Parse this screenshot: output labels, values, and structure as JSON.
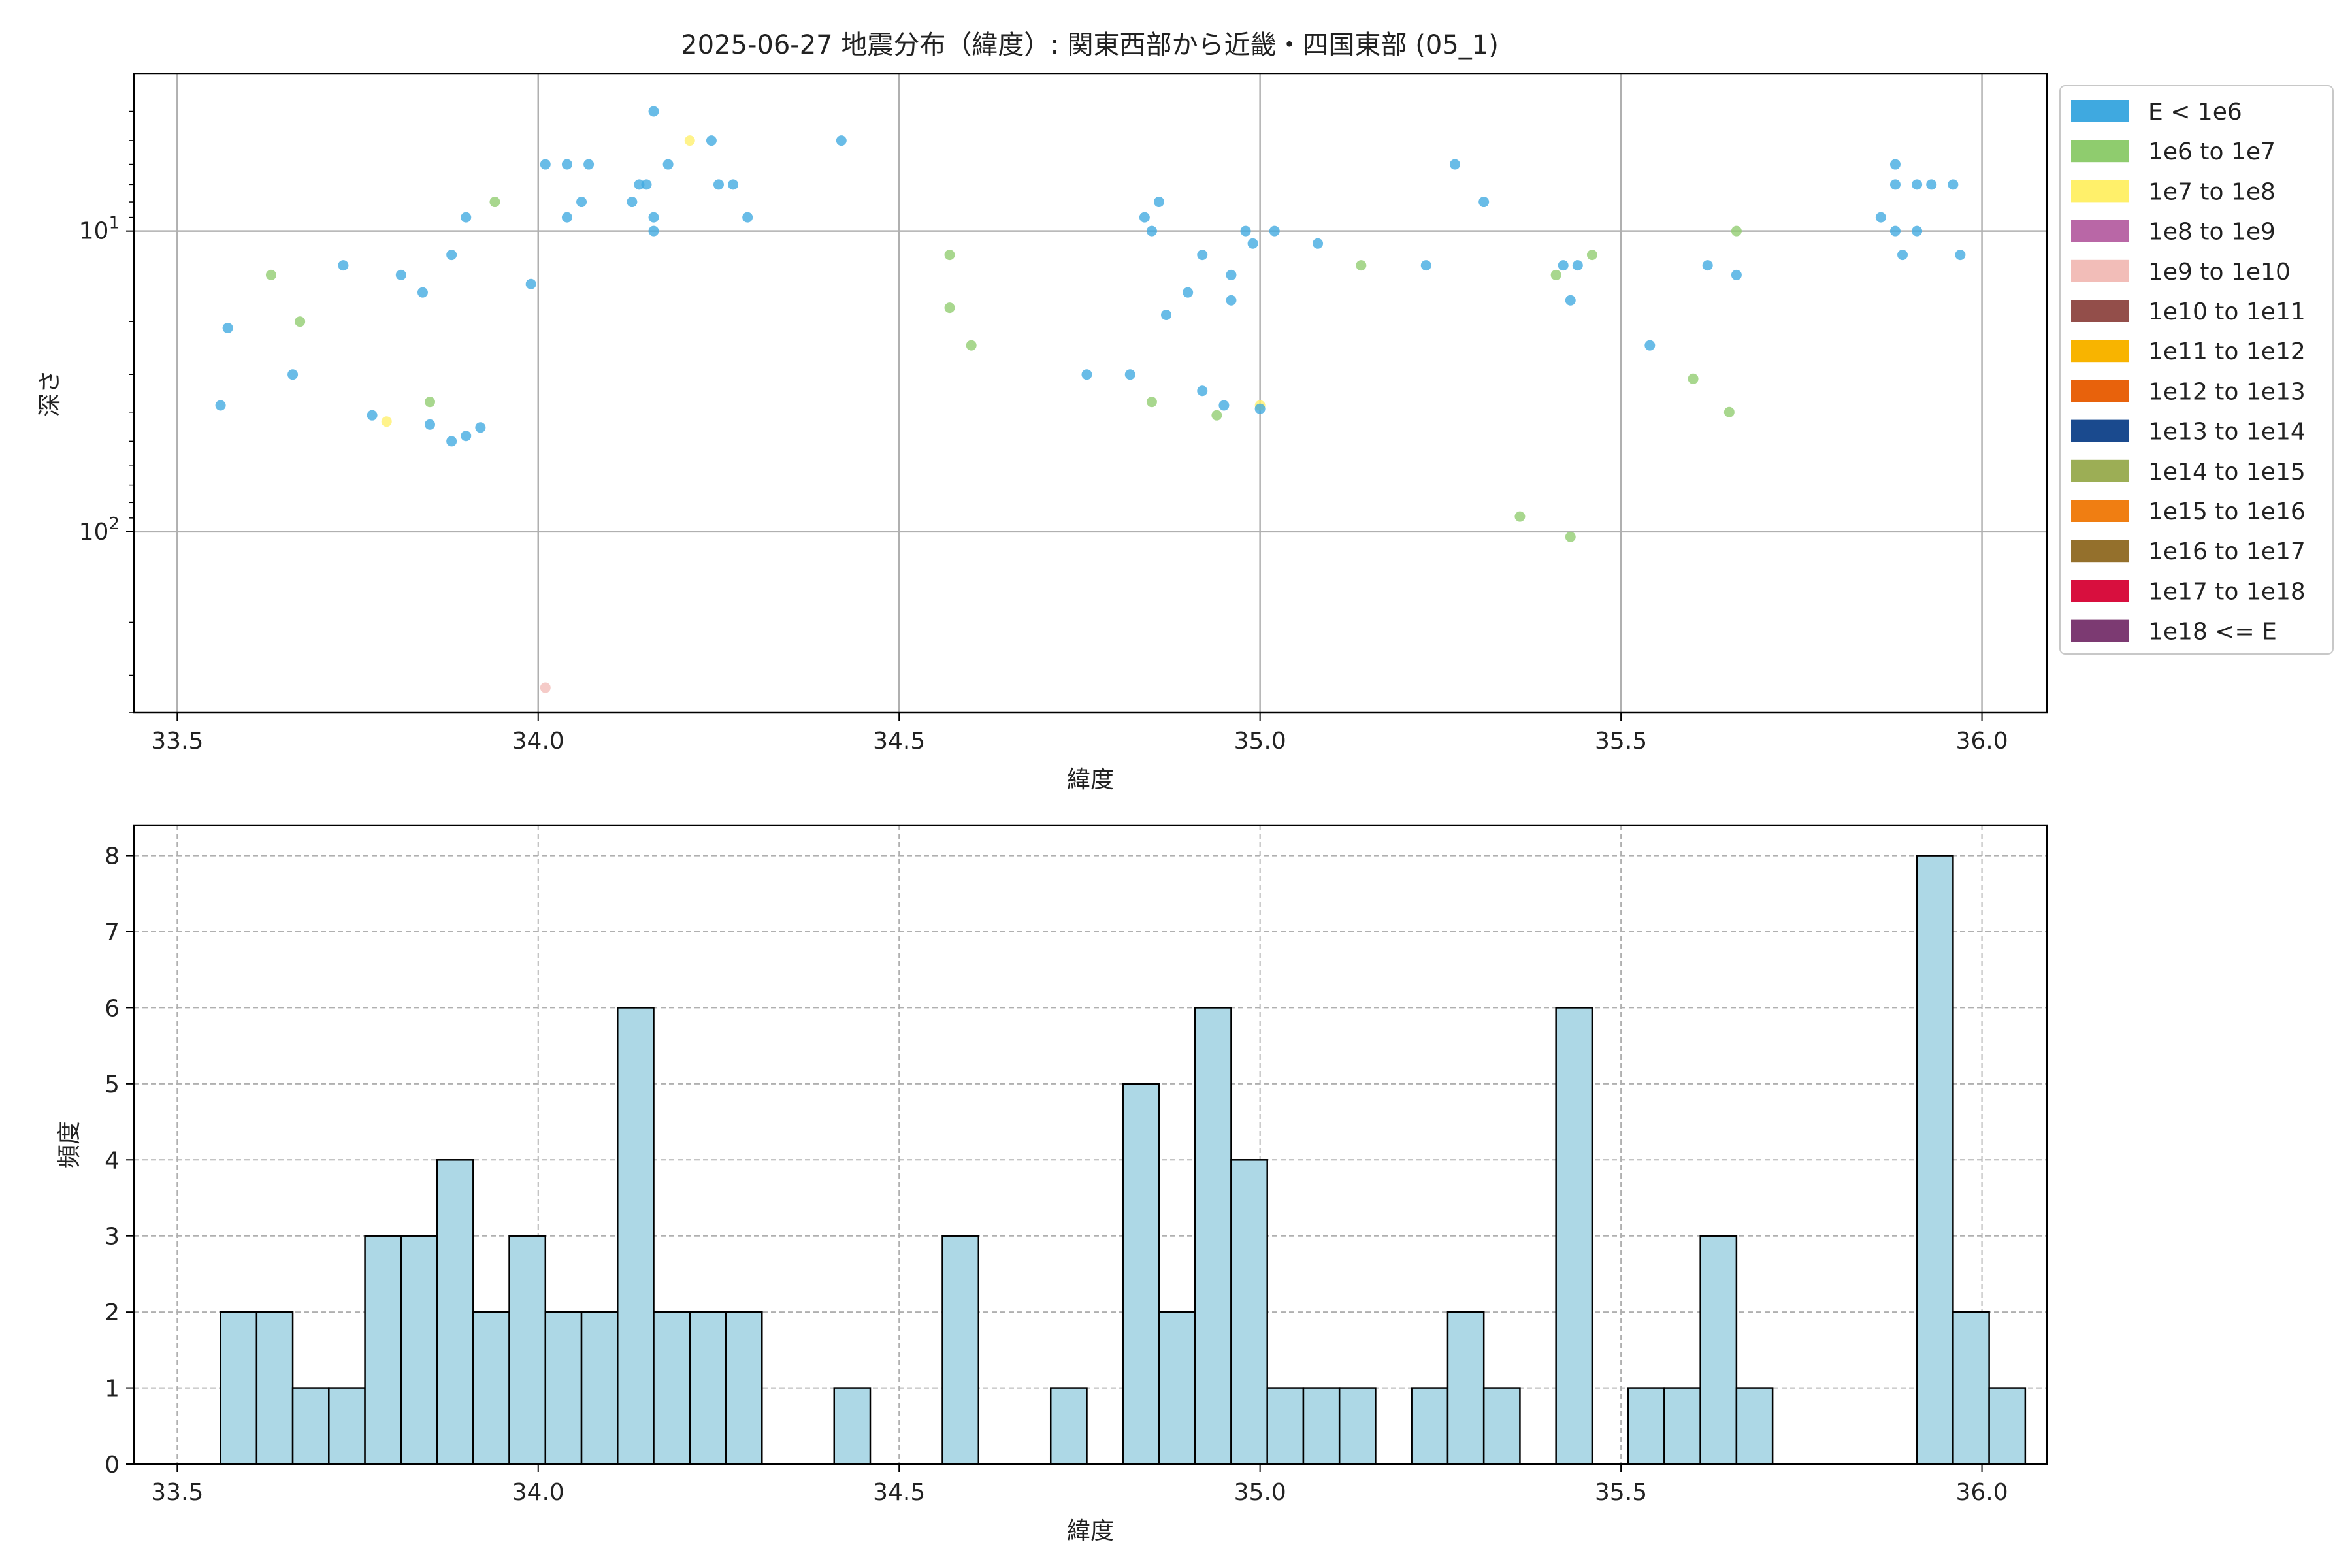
{
  "title": "2025-06-27 地震分布（緯度）: 関東西部から近畿・四国東部 (05_1)",
  "chart_data": [
    {
      "type": "scatter",
      "xlabel": "緯度",
      "ylabel": "深さ",
      "xlim": [
        33.44,
        36.09
      ],
      "ylim": [
        400,
        3
      ],
      "yscale": "log",
      "y_inverted": true,
      "grid": true,
      "legend_placement": "outside-right",
      "x_ticks": [
        "33.5",
        "34.0",
        "34.5",
        "35.0",
        "35.5",
        "36.0"
      ],
      "y_ticks": [
        {
          "value": 10,
          "base": "10",
          "exp": "1"
        },
        {
          "value": 100,
          "base": "10",
          "exp": "2"
        }
      ],
      "legend": [
        {
          "label": "E < 1e6",
          "color": "#3fa9e0"
        },
        {
          "label": "1e6 to 1e7",
          "color": "#8fcc6e"
        },
        {
          "label": "1e7 to 1e8",
          "color": "#fff06a"
        },
        {
          "label": "1e8 to 1e9",
          "color": "#b967a6"
        },
        {
          "label": "1e9 to 1e10",
          "color": "#f2bdb8"
        },
        {
          "label": "1e10 to 1e11",
          "color": "#934e4a"
        },
        {
          "label": "1e11 to 1e12",
          "color": "#f8b400"
        },
        {
          "label": "1e12 to 1e13",
          "color": "#e8620c"
        },
        {
          "label": "1e13 to 1e14",
          "color": "#1a4a8e"
        },
        {
          "label": "1e14 to 1e15",
          "color": "#9cae55"
        },
        {
          "label": "1e15 to 1e16",
          "color": "#f07e12"
        },
        {
          "label": "1e16 to 1e17",
          "color": "#94702c"
        },
        {
          "label": "1e17 to 1e18",
          "color": "#d80f3e"
        },
        {
          "label": "1e18 <= E",
          "color": "#7c3a72"
        }
      ],
      "points": [
        {
          "x": 33.56,
          "y": 38,
          "c": 0
        },
        {
          "x": 33.57,
          "y": 21,
          "c": 0
        },
        {
          "x": 33.63,
          "y": 14,
          "c": 1
        },
        {
          "x": 33.66,
          "y": 30,
          "c": 0
        },
        {
          "x": 33.67,
          "y": 20,
          "c": 1
        },
        {
          "x": 33.73,
          "y": 13,
          "c": 0
        },
        {
          "x": 33.77,
          "y": 41,
          "c": 0
        },
        {
          "x": 33.79,
          "y": 43,
          "c": 2
        },
        {
          "x": 33.81,
          "y": 14,
          "c": 0
        },
        {
          "x": 33.84,
          "y": 16,
          "c": 0
        },
        {
          "x": 33.85,
          "y": 37,
          "c": 1
        },
        {
          "x": 33.85,
          "y": 44,
          "c": 0
        },
        {
          "x": 33.88,
          "y": 12,
          "c": 0
        },
        {
          "x": 33.88,
          "y": 50,
          "c": 0
        },
        {
          "x": 33.9,
          "y": 9,
          "c": 0
        },
        {
          "x": 33.9,
          "y": 48,
          "c": 0
        },
        {
          "x": 33.92,
          "y": 45,
          "c": 0
        },
        {
          "x": 33.94,
          "y": 8,
          "c": 1
        },
        {
          "x": 33.99,
          "y": 15,
          "c": 0
        },
        {
          "x": 34.01,
          "y": 6,
          "c": 0
        },
        {
          "x": 34.01,
          "y": 330,
          "c": 4
        },
        {
          "x": 34.04,
          "y": 6,
          "c": 0
        },
        {
          "x": 34.04,
          "y": 9,
          "c": 0
        },
        {
          "x": 34.06,
          "y": 8,
          "c": 0
        },
        {
          "x": 34.07,
          "y": 6,
          "c": 0
        },
        {
          "x": 34.13,
          "y": 8,
          "c": 0
        },
        {
          "x": 34.14,
          "y": 7,
          "c": 0
        },
        {
          "x": 34.15,
          "y": 7,
          "c": 0
        },
        {
          "x": 34.16,
          "y": 9,
          "c": 0
        },
        {
          "x": 34.16,
          "y": 10,
          "c": 0
        },
        {
          "x": 34.16,
          "y": 4,
          "c": 0
        },
        {
          "x": 34.18,
          "y": 6,
          "c": 0
        },
        {
          "x": 34.21,
          "y": 5,
          "c": 2
        },
        {
          "x": 34.24,
          "y": 5,
          "c": 0
        },
        {
          "x": 34.25,
          "y": 7,
          "c": 0
        },
        {
          "x": 34.27,
          "y": 7,
          "c": 0
        },
        {
          "x": 34.29,
          "y": 9,
          "c": 0
        },
        {
          "x": 34.42,
          "y": 5,
          "c": 0
        },
        {
          "x": 34.57,
          "y": 12,
          "c": 1
        },
        {
          "x": 34.57,
          "y": 18,
          "c": 1
        },
        {
          "x": 34.6,
          "y": 24,
          "c": 1
        },
        {
          "x": 34.76,
          "y": 30,
          "c": 0
        },
        {
          "x": 34.82,
          "y": 30,
          "c": 0
        },
        {
          "x": 34.84,
          "y": 9,
          "c": 0
        },
        {
          "x": 34.85,
          "y": 37,
          "c": 1
        },
        {
          "x": 34.85,
          "y": 10,
          "c": 0
        },
        {
          "x": 34.86,
          "y": 8,
          "c": 0
        },
        {
          "x": 34.87,
          "y": 19,
          "c": 0
        },
        {
          "x": 34.9,
          "y": 16,
          "c": 0
        },
        {
          "x": 34.92,
          "y": 34,
          "c": 0
        },
        {
          "x": 34.92,
          "y": 12,
          "c": 0
        },
        {
          "x": 34.94,
          "y": 41,
          "c": 1
        },
        {
          "x": 34.95,
          "y": 38,
          "c": 0
        },
        {
          "x": 34.96,
          "y": 14,
          "c": 0
        },
        {
          "x": 34.96,
          "y": 17,
          "c": 0
        },
        {
          "x": 34.98,
          "y": 10,
          "c": 0
        },
        {
          "x": 34.99,
          "y": 11,
          "c": 0
        },
        {
          "x": 35.0,
          "y": 38,
          "c": 2
        },
        {
          "x": 35.0,
          "y": 39,
          "c": 0
        },
        {
          "x": 35.02,
          "y": 10,
          "c": 0
        },
        {
          "x": 35.08,
          "y": 11,
          "c": 0
        },
        {
          "x": 35.14,
          "y": 13,
          "c": 1
        },
        {
          "x": 35.23,
          "y": 13,
          "c": 0
        },
        {
          "x": 35.27,
          "y": 6,
          "c": 0
        },
        {
          "x": 35.31,
          "y": 8,
          "c": 0
        },
        {
          "x": 35.36,
          "y": 89,
          "c": 1
        },
        {
          "x": 35.41,
          "y": 14,
          "c": 1
        },
        {
          "x": 35.42,
          "y": 13,
          "c": 0
        },
        {
          "x": 35.43,
          "y": 17,
          "c": 0
        },
        {
          "x": 35.43,
          "y": 104,
          "c": 1
        },
        {
          "x": 35.44,
          "y": 13,
          "c": 0
        },
        {
          "x": 35.46,
          "y": 12,
          "c": 1
        },
        {
          "x": 35.54,
          "y": 24,
          "c": 0
        },
        {
          "x": 35.6,
          "y": 31,
          "c": 1
        },
        {
          "x": 35.62,
          "y": 13,
          "c": 0
        },
        {
          "x": 35.65,
          "y": 40,
          "c": 1
        },
        {
          "x": 35.66,
          "y": 14,
          "c": 0
        },
        {
          "x": 35.66,
          "y": 10,
          "c": 1
        },
        {
          "x": 35.86,
          "y": 9,
          "c": 0
        },
        {
          "x": 35.88,
          "y": 6,
          "c": 0
        },
        {
          "x": 35.88,
          "y": 7,
          "c": 0
        },
        {
          "x": 35.88,
          "y": 10,
          "c": 0
        },
        {
          "x": 35.89,
          "y": 12,
          "c": 0
        },
        {
          "x": 35.91,
          "y": 7,
          "c": 0
        },
        {
          "x": 35.91,
          "y": 10,
          "c": 0
        },
        {
          "x": 35.93,
          "y": 7,
          "c": 0
        },
        {
          "x": 35.96,
          "y": 7,
          "c": 0
        },
        {
          "x": 35.97,
          "y": 12,
          "c": 0
        }
      ]
    },
    {
      "type": "bar",
      "subtype": "histogram",
      "xlabel": "緯度",
      "ylabel": "頻度",
      "xlim": [
        33.44,
        36.09
      ],
      "ylim": [
        0,
        8.4
      ],
      "grid": true,
      "x_ticks": [
        "33.5",
        "34.0",
        "34.5",
        "35.0",
        "35.5",
        "36.0"
      ],
      "y_ticks": [
        "0",
        "1",
        "2",
        "3",
        "4",
        "5",
        "6",
        "7",
        "8"
      ],
      "bar_color": "#add8e6",
      "edge_color": "#000000",
      "bin_start": 33.56,
      "bin_width": 0.05,
      "values": [
        2,
        2,
        1,
        1,
        3,
        3,
        4,
        2,
        3,
        2,
        2,
        6,
        2,
        2,
        2,
        0,
        0,
        1,
        0,
        0,
        3,
        0,
        0,
        1,
        0,
        5,
        2,
        6,
        4,
        1,
        1,
        1,
        0,
        1,
        2,
        1,
        0,
        6,
        0,
        1,
        1,
        3,
        1,
        0,
        0,
        0,
        0,
        8,
        2,
        1
      ]
    }
  ]
}
